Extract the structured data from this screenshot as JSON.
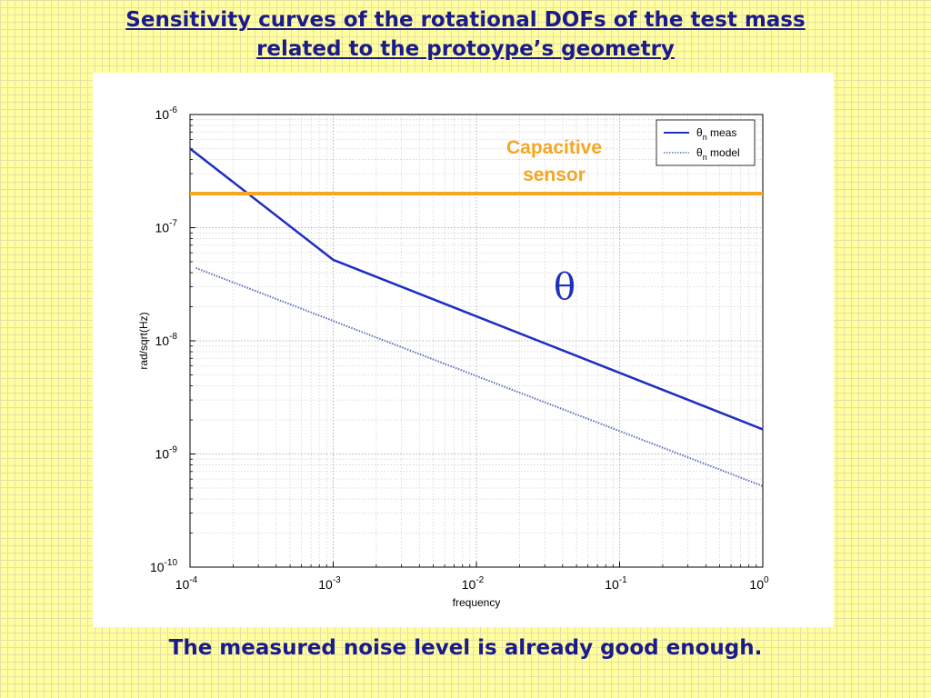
{
  "slide": {
    "title_line1": "Sensitivity curves of the rotational DOFs of the test mass",
    "title_line2": "related to the protoype’s geometry",
    "caption": "The measured noise level is already good enough."
  },
  "chart_data": {
    "type": "line",
    "title": "",
    "xlabel": "frequency",
    "ylabel": "rad/sqrt(Hz)",
    "xscale": "log",
    "yscale": "log",
    "xlim": [
      0.0001,
      1
    ],
    "ylim": [
      1e-10,
      1e-06
    ],
    "grid": true,
    "legend_position": "top-right",
    "x_ticks": [
      {
        "base": "10",
        "exp": "-4"
      },
      {
        "base": "10",
        "exp": "-3"
      },
      {
        "base": "10",
        "exp": "-2"
      },
      {
        "base": "10",
        "exp": "-1"
      },
      {
        "base": "10",
        "exp": "0"
      }
    ],
    "y_ticks": [
      {
        "base": "10",
        "exp": "-6"
      },
      {
        "base": "10",
        "exp": "-7"
      },
      {
        "base": "10",
        "exp": "-8"
      },
      {
        "base": "10",
        "exp": "-9"
      },
      {
        "base": "10",
        "exp": "-10"
      }
    ],
    "series": [
      {
        "name_main": "θ",
        "name_sub": "n",
        "name_rest": " meas",
        "style": "solid",
        "color": "#1f2fbf",
        "x": [
          0.0001,
          0.001,
          1
        ],
        "y": [
          5e-07,
          5.2e-08,
          1.65e-09
        ]
      },
      {
        "name_main": "θ",
        "name_sub": "n",
        "name_rest": " model",
        "style": "dotted",
        "color": "#5a6fb8",
        "x": [
          0.00011,
          0.001,
          1
        ],
        "y": [
          4.4e-08,
          1.5e-08,
          5.2e-10
        ]
      },
      {
        "name": "Capacitive sensor",
        "style": "solid",
        "color": "#f5a623",
        "x": [
          0.0001,
          1
        ],
        "y": [
          2e-07,
          2e-07
        ]
      }
    ],
    "annotations": {
      "sensor_line1": "Capacitive",
      "sensor_line2": "sensor",
      "theta": "θ"
    }
  }
}
